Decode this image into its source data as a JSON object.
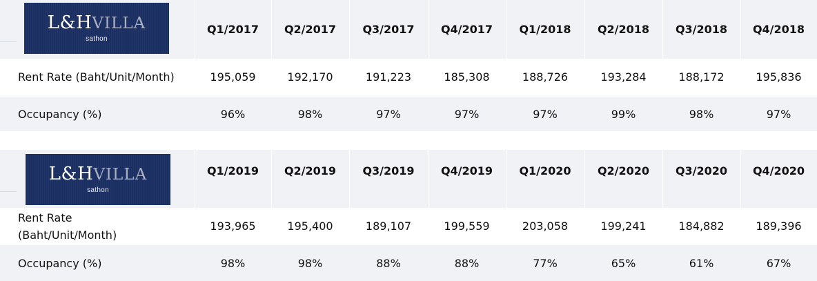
{
  "tables": [
    {
      "logo": {
        "brand_lh": "L&H",
        "brand_villa": "VILLA",
        "location": "sathon"
      },
      "headers": [
        "Q1/2017",
        "Q2/2017",
        "Q3/2017",
        "Q4/2017",
        "Q1/2018",
        "Q2/2018",
        "Q3/2018",
        "Q4/2018"
      ],
      "rent": {
        "label": "Rent Rate (Baht/Unit/Month)",
        "values": [
          "195,059",
          "192,170",
          "191,223",
          "185,308",
          "188,726",
          "193,284",
          "188,172",
          "195,836"
        ]
      },
      "occupancy": {
        "label": "Occupancy (%)",
        "values": [
          "96%",
          "98%",
          "97%",
          "97%",
          "97%",
          "99%",
          "98%",
          "97%"
        ]
      }
    },
    {
      "logo": {
        "brand_lh": "L&H",
        "brand_villa": "VILLA",
        "location": "sathon"
      },
      "headers": [
        "Q1/2019",
        "Q2/2019",
        "Q3/2019",
        "Q4/2019",
        "Q1/2020",
        "Q2/2020",
        "Q3/2020",
        "Q4/2020"
      ],
      "rent": {
        "label_line1": "Rent Rate",
        "label_line2": "(Baht/Unit/Month)",
        "values": [
          "193,965",
          "195,400",
          "189,107",
          "199,559",
          "203,058",
          "199,241",
          "184,882",
          "189,396"
        ]
      },
      "occupancy": {
        "label": "Occupancy (%)",
        "values": [
          "98%",
          "98%",
          "88%",
          "88%",
          "77%",
          "65%",
          "61%",
          "67%"
        ]
      }
    }
  ],
  "colors": {
    "logo_bg": "#1b2f63",
    "header_bg": "#f0f2f5",
    "row_alt_bg": "#f0f2f5"
  }
}
